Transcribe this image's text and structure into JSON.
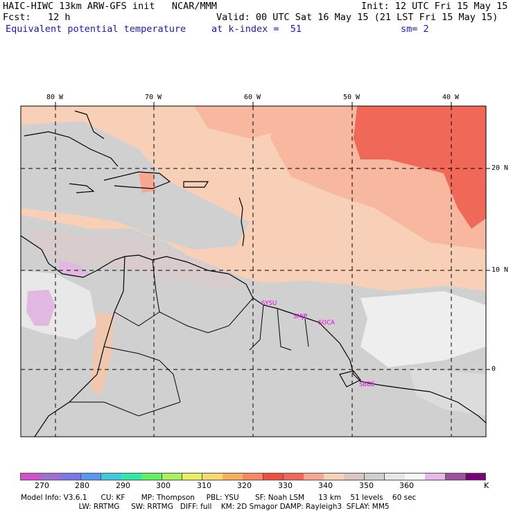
{
  "header": {
    "line1_left": "HAIC-HIWC 13km ARW-GFS init   NCAR/MMM",
    "line1_right": "Init: 12 UTC Fri 15 May 15",
    "line2_left": "Fcst:   12 h",
    "line2_right": "Valid: 00 UTC Sat 16 May 15 (21 LST Fri 15 May 15)",
    "line3_field": "Equivalent potential temperature",
    "line3_kindex": "at k-index =  51",
    "line3_sm": "sm= 2"
  },
  "map": {
    "lon_labels": [
      "80 W",
      "70 W",
      "60 W",
      "50 W",
      "40 W"
    ],
    "lat_labels": [
      "20 N",
      "10 N",
      "0"
    ],
    "stations": [
      "SYSU",
      "SMJP",
      "SOCA",
      "SBBE"
    ]
  },
  "colorbar": {
    "labels": [
      "270",
      "280",
      "290",
      "300",
      "310",
      "320",
      "330",
      "340",
      "350",
      "360",
      "K"
    ],
    "colors": [
      "#d050d0",
      "#a070d0",
      "#7878e8",
      "#5898f0",
      "#40c8e0",
      "#30e8a8",
      "#60f060",
      "#a8f060",
      "#e8f060",
      "#f8d870",
      "#f8b060",
      "#f88860",
      "#f05040",
      "#f06858",
      "#f8a890",
      "#f8d0b8",
      "#d8c8c0",
      "#d0d0d0",
      "#e8e8e8",
      "#f8f8f8",
      "#e8b8e8",
      "#a050a0",
      "#780078"
    ]
  },
  "footer": {
    "line1": "Model Info: V3.6.1      CU: KF       MP: Thompson     PBL: YSU       SF: Noah LSM      13 km    51 levels    60 sec",
    "line2": "                         LW: RRTMG     SW: RRTMG   DIFF: full    KM: 2D Smagor DAMP: Rayleigh3  SFLAY: MM5"
  }
}
